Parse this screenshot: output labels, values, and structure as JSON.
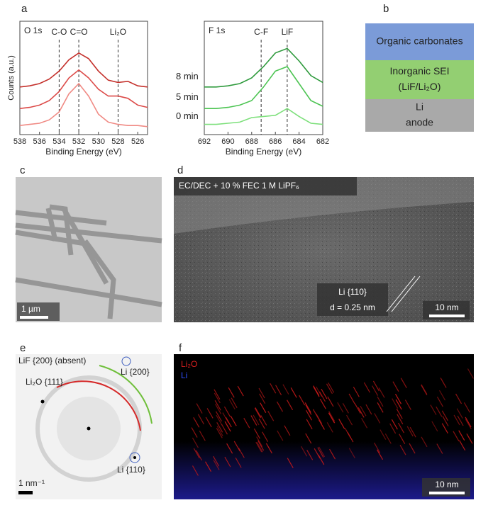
{
  "chart_data": [
    {
      "type": "line",
      "panel": "a",
      "title": "O 1s",
      "xlabel": "Binding Energy (eV)",
      "ylabel": "Counts (a.u.)",
      "x": [
        538,
        537,
        536,
        535,
        534,
        533,
        532,
        531,
        530,
        529,
        528,
        527,
        526,
        525
      ],
      "xlim": [
        538,
        525
      ],
      "xticks": [
        538,
        536,
        534,
        532,
        530,
        528,
        526
      ],
      "ylim": [
        0,
        10
      ],
      "annotations": [
        {
          "text": "C-O",
          "x": 534
        },
        {
          "text": "C=O",
          "x": 532
        },
        {
          "text": "Li₂O",
          "x": 528
        }
      ],
      "series": [
        {
          "name": "8 min",
          "color": "#c4302b",
          "values": [
            4.2,
            4.3,
            4.5,
            4.9,
            5.6,
            6.6,
            7.2,
            6.7,
            5.6,
            4.8,
            4.6,
            4.7,
            4.3,
            4.2
          ]
        },
        {
          "name": "5 min",
          "color": "#dc4a48",
          "values": [
            2.3,
            2.4,
            2.6,
            3.0,
            3.8,
            5.0,
            5.7,
            5.0,
            4.0,
            3.4,
            3.4,
            3.2,
            2.6,
            2.4
          ]
        },
        {
          "name": "0 min",
          "color": "#f08a84",
          "values": [
            0.8,
            0.9,
            1.0,
            1.3,
            2.0,
            3.6,
            4.5,
            3.4,
            1.8,
            1.1,
            0.9,
            0.8,
            0.8,
            0.7
          ]
        }
      ]
    },
    {
      "type": "line",
      "title": "F 1s",
      "xlabel": "Binding Energy (eV)",
      "x": [
        692,
        691,
        690,
        689,
        688,
        687,
        686,
        685,
        684,
        683,
        682
      ],
      "xlim": [
        692,
        682
      ],
      "xticks": [
        692,
        690,
        688,
        686,
        684,
        682
      ],
      "ylim": [
        0,
        10
      ],
      "annotations": [
        {
          "text": "C-F",
          "x": 687.2
        },
        {
          "text": "LiF",
          "x": 685
        }
      ],
      "series": [
        {
          "color": "#2e9a3c",
          "values": [
            4.2,
            4.2,
            4.3,
            4.5,
            5.0,
            6.0,
            7.2,
            7.6,
            6.5,
            5.2,
            4.6
          ]
        },
        {
          "color": "#4cc452",
          "values": [
            2.3,
            2.3,
            2.4,
            2.6,
            3.0,
            4.2,
            5.6,
            6.0,
            4.5,
            3.0,
            2.5
          ]
        },
        {
          "color": "#7ee07c",
          "values": [
            0.9,
            0.9,
            1.0,
            1.1,
            1.5,
            1.6,
            1.7,
            2.3,
            1.6,
            1.0,
            0.9
          ]
        }
      ]
    }
  ],
  "panel_b": {
    "label": "b",
    "layers": [
      {
        "lines": [
          "Organic carbonates"
        ],
        "color": "#7b9bd8"
      },
      {
        "lines": [
          "Inorganic SEI",
          "(LiF/Li₂O)"
        ],
        "color": "#93cf72"
      },
      {
        "lines": [
          "Li",
          "anode"
        ],
        "color": "#a9a9a9"
      }
    ]
  },
  "panel_c": {
    "label": "c",
    "scale_bar": "1 µm"
  },
  "panel_d": {
    "label": "d",
    "condition": "EC/DEC + 10 % FEC 1 M LiPF₆",
    "plane": "Li {110}",
    "spacing": "d = 0.25 nm",
    "scale_bar": "10 nm"
  },
  "panel_e": {
    "label": "e",
    "absent": "LiF {200} (absent)",
    "li200": "Li {200}",
    "li2o111": "Li₂O {111}",
    "li110": "Li {110}",
    "scale_bar": "1 nm⁻¹"
  },
  "panel_f": {
    "label": "f",
    "legend_li2o": "Li₂O",
    "legend_li": "Li",
    "scale_bar": "10 nm"
  }
}
